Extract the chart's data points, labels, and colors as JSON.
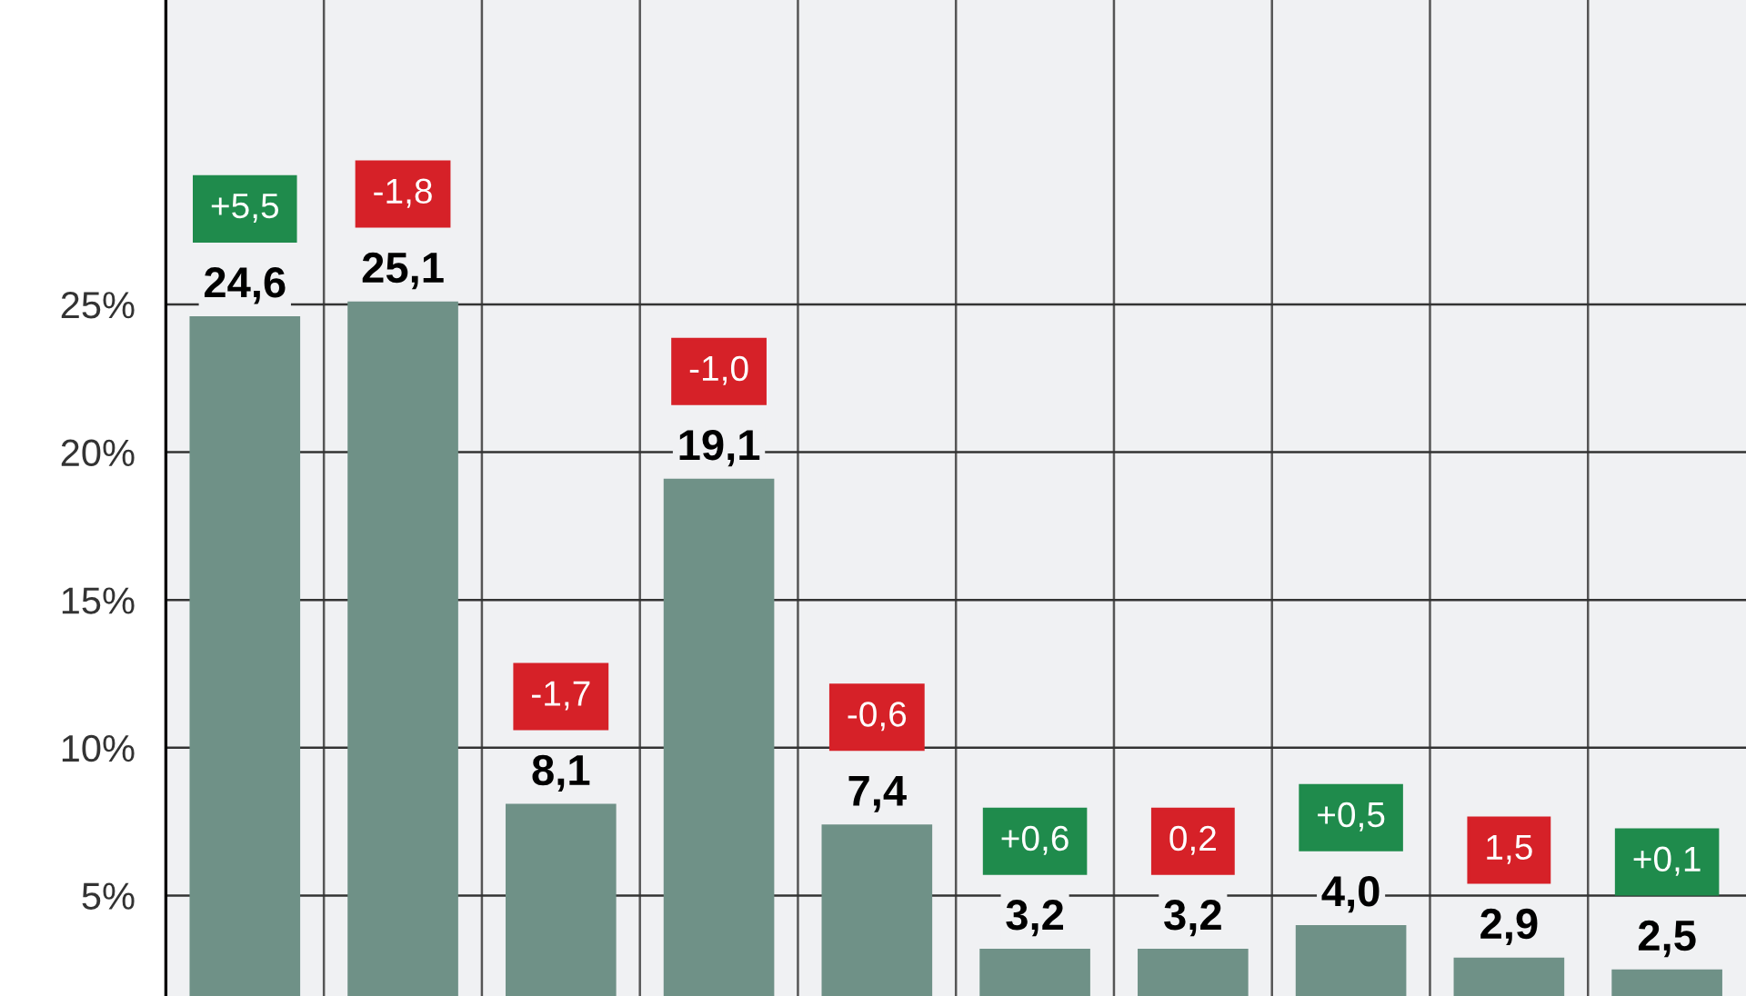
{
  "chart_data": {
    "type": "bar",
    "categories": [
      null,
      null,
      null,
      null,
      null,
      null,
      null,
      null,
      null,
      null
    ],
    "values": [
      24.6,
      25.1,
      8.1,
      19.1,
      7.4,
      3.2,
      3.2,
      4.0,
      2.9,
      2.5
    ],
    "value_labels": [
      "24,6",
      "25,1",
      "8,1",
      "19,1",
      "7,4",
      "3,2",
      "3,2",
      "4,0",
      "2,9",
      "2,5"
    ],
    "color": "#6f9187",
    "annotations": [
      "+5,5",
      "-1,8",
      "-1,7",
      "-1,0",
      "-0,6",
      "+0,6",
      "0,2",
      "+0,5",
      "1,5",
      "+0,1"
    ],
    "ylim": [
      1.6,
      35.3
    ],
    "yticks": [
      {
        "value": 5,
        "label": "5%"
      },
      {
        "value": 10,
        "label": "10%"
      },
      {
        "value": 15,
        "label": "15%"
      },
      {
        "value": 20,
        "label": "20%"
      },
      {
        "value": 25,
        "label": "25%"
      }
    ],
    "grid": true
  }
}
